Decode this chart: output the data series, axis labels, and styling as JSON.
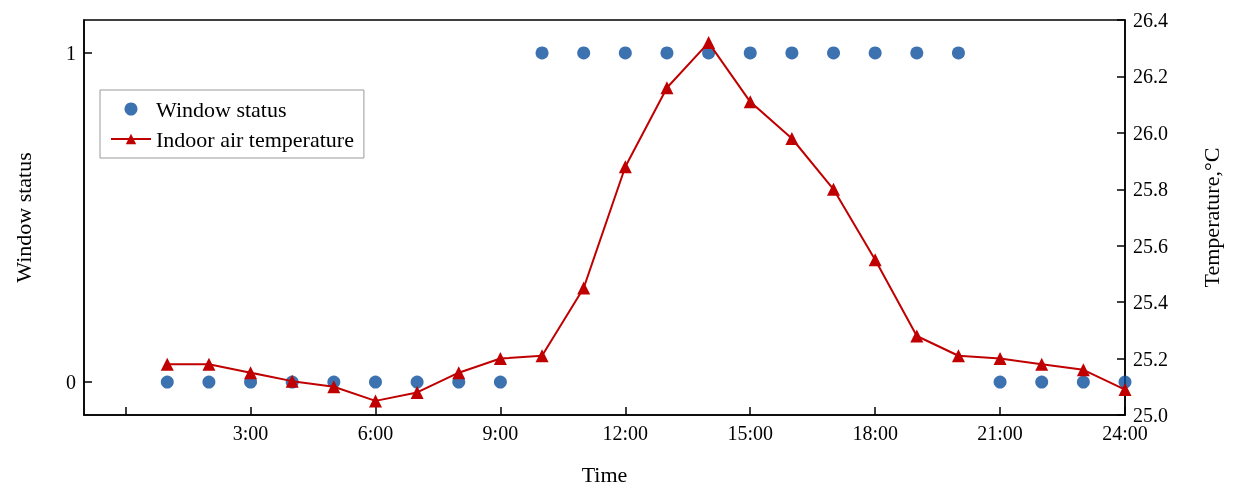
{
  "chart_data": {
    "type": "line",
    "xlabel": "Time",
    "ylabel": "Window status",
    "y2label": "Temperature,°C",
    "x": [
      1,
      2,
      3,
      4,
      5,
      6,
      7,
      8,
      9,
      10,
      11,
      12,
      13,
      14,
      15,
      16,
      17,
      18,
      19,
      20,
      21,
      22,
      23,
      24
    ],
    "series": [
      {
        "name": "Window status",
        "type": "scatter",
        "marker": "circle",
        "color": "#0d4f9c",
        "values": [
          0,
          0,
          0,
          0,
          0,
          0,
          0,
          0,
          0,
          1,
          1,
          1,
          1,
          1,
          1,
          1,
          1,
          1,
          1,
          1,
          0,
          0,
          0,
          0
        ]
      },
      {
        "name": "Indoor air temperature",
        "marker": "triangle",
        "axis": "y2",
        "color": "#c00000",
        "values": [
          25.18,
          25.18,
          25.15,
          25.12,
          25.1,
          25.05,
          25.08,
          25.15,
          25.2,
          25.21,
          25.45,
          25.88,
          26.16,
          26.32,
          26.11,
          25.98,
          25.8,
          25.55,
          25.28,
          25.21,
          25.2,
          25.18,
          25.16,
          25.09
        ]
      }
    ],
    "xlim": [
      -1,
      24
    ],
    "xticks": [
      {
        "value": 0,
        "label": null
      },
      {
        "value": 3,
        "label": "3:00"
      },
      {
        "value": 6,
        "label": "6:00"
      },
      {
        "value": 9,
        "label": "9:00"
      },
      {
        "value": 12,
        "label": "12:00"
      },
      {
        "value": 15,
        "label": "15:00"
      },
      {
        "value": 18,
        "label": "18:00"
      },
      {
        "value": 21,
        "label": "21:00"
      },
      {
        "value": 24,
        "label": "24:00"
      }
    ],
    "ylim": [
      -0.1,
      1.1
    ],
    "yticks": [
      0,
      1
    ],
    "y2lim": [
      25.0,
      26.4
    ],
    "y2ticks": [
      {
        "value": 25.0,
        "label": "25.0"
      },
      25.2,
      25.4,
      25.6,
      25.8,
      {
        "value": 26.0,
        "label": "26.0"
      },
      26.2,
      26.4
    ],
    "grid": false,
    "legend": "top left",
    "line_style": "solid"
  }
}
